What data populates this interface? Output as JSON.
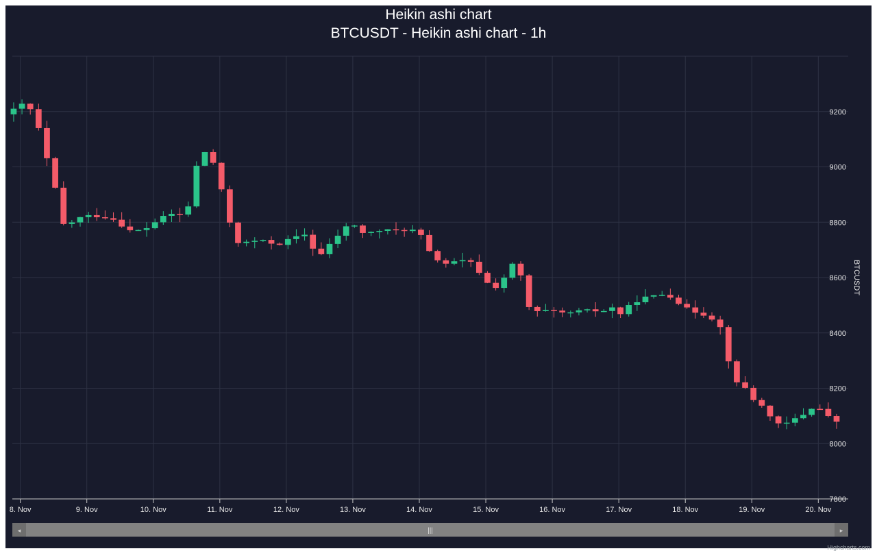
{
  "chart_data": {
    "type": "candlestick",
    "subtype": "heikin-ashi",
    "title": "Heikin ashi chart",
    "subtitle": "BTCUSDT - Heikin ashi chart - 1h",
    "ylabel": "BTCUSDT",
    "xlabel": "",
    "y_axis_side": "right",
    "ylim": [
      7800,
      9400
    ],
    "y_ticks": [
      7800,
      8000,
      8200,
      8400,
      8600,
      8800,
      9000,
      9200
    ],
    "x_range_days": [
      -0.12,
      12.45
    ],
    "x_ticks": [
      {
        "day": 0,
        "label": "8. Nov"
      },
      {
        "day": 1,
        "label": "9. Nov"
      },
      {
        "day": 2,
        "label": "10. Nov"
      },
      {
        "day": 3,
        "label": "11. Nov"
      },
      {
        "day": 4,
        "label": "12. Nov"
      },
      {
        "day": 5,
        "label": "13. Nov"
      },
      {
        "day": 6,
        "label": "14. Nov"
      },
      {
        "day": 7,
        "label": "15. Nov"
      },
      {
        "day": 8,
        "label": "16. Nov"
      },
      {
        "day": 9,
        "label": "17. Nov"
      },
      {
        "day": 10,
        "label": "18. Nov"
      },
      {
        "day": 11,
        "label": "19. Nov"
      },
      {
        "day": 12,
        "label": "20. Nov"
      }
    ],
    "grid": true,
    "colors": {
      "up": "#2bc48a",
      "down": "#f45b69",
      "background": "#181b2c",
      "grid": "#2e3244",
      "text": "#e6e6e6"
    },
    "anchor_points": [
      [
        -0.1,
        9190
      ],
      [
        0.1,
        9215
      ],
      [
        0.2,
        9235
      ],
      [
        0.35,
        9180
      ],
      [
        0.5,
        9050
      ],
      [
        0.65,
        8920
      ],
      [
        0.75,
        8790
      ],
      [
        0.9,
        8800
      ],
      [
        1.0,
        8815
      ],
      [
        1.2,
        8825
      ],
      [
        1.5,
        8815
      ],
      [
        1.8,
        8765
      ],
      [
        2.0,
        8775
      ],
      [
        2.2,
        8810
      ],
      [
        2.4,
        8830
      ],
      [
        2.6,
        8825
      ],
      [
        2.7,
        8890
      ],
      [
        2.8,
        9040
      ],
      [
        2.95,
        9060
      ],
      [
        3.05,
        9000
      ],
      [
        3.2,
        8870
      ],
      [
        3.35,
        8730
      ],
      [
        3.5,
        8725
      ],
      [
        3.7,
        8735
      ],
      [
        4.0,
        8720
      ],
      [
        4.2,
        8740
      ],
      [
        4.4,
        8755
      ],
      [
        4.5,
        8720
      ],
      [
        4.6,
        8670
      ],
      [
        4.8,
        8725
      ],
      [
        5.0,
        8780
      ],
      [
        5.15,
        8790
      ],
      [
        5.3,
        8755
      ],
      [
        5.5,
        8770
      ],
      [
        5.8,
        8770
      ],
      [
        6.0,
        8775
      ],
      [
        6.15,
        8750
      ],
      [
        6.3,
        8680
      ],
      [
        6.5,
        8650
      ],
      [
        6.8,
        8660
      ],
      [
        6.95,
        8650
      ],
      [
        7.1,
        8590
      ],
      [
        7.25,
        8560
      ],
      [
        7.4,
        8600
      ],
      [
        7.5,
        8645
      ],
      [
        7.6,
        8650
      ],
      [
        7.7,
        8560
      ],
      [
        7.8,
        8470
      ],
      [
        8.0,
        8480
      ],
      [
        8.3,
        8470
      ],
      [
        8.6,
        8480
      ],
      [
        8.9,
        8480
      ],
      [
        9.0,
        8495
      ],
      [
        9.15,
        8470
      ],
      [
        9.3,
        8500
      ],
      [
        9.45,
        8525
      ],
      [
        9.6,
        8530
      ],
      [
        9.8,
        8540
      ],
      [
        9.95,
        8530
      ],
      [
        10.1,
        8490
      ],
      [
        10.3,
        8475
      ],
      [
        10.5,
        8460
      ],
      [
        10.65,
        8420
      ],
      [
        10.75,
        8330
      ],
      [
        10.85,
        8220
      ],
      [
        11.0,
        8210
      ],
      [
        11.15,
        8160
      ],
      [
        11.3,
        8130
      ],
      [
        11.45,
        8090
      ],
      [
        11.55,
        8060
      ],
      [
        11.7,
        8080
      ],
      [
        11.9,
        8105
      ],
      [
        12.0,
        8130
      ],
      [
        12.15,
        8125
      ],
      [
        12.25,
        8100
      ],
      [
        12.38,
        8080
      ]
    ],
    "candle_interval_hours": 3,
    "noise_seed": 42
  },
  "navigator": {
    "left_arrow": "◂",
    "right_arrow": "▸",
    "grip": "|||"
  },
  "credits": "Highcharts.com"
}
